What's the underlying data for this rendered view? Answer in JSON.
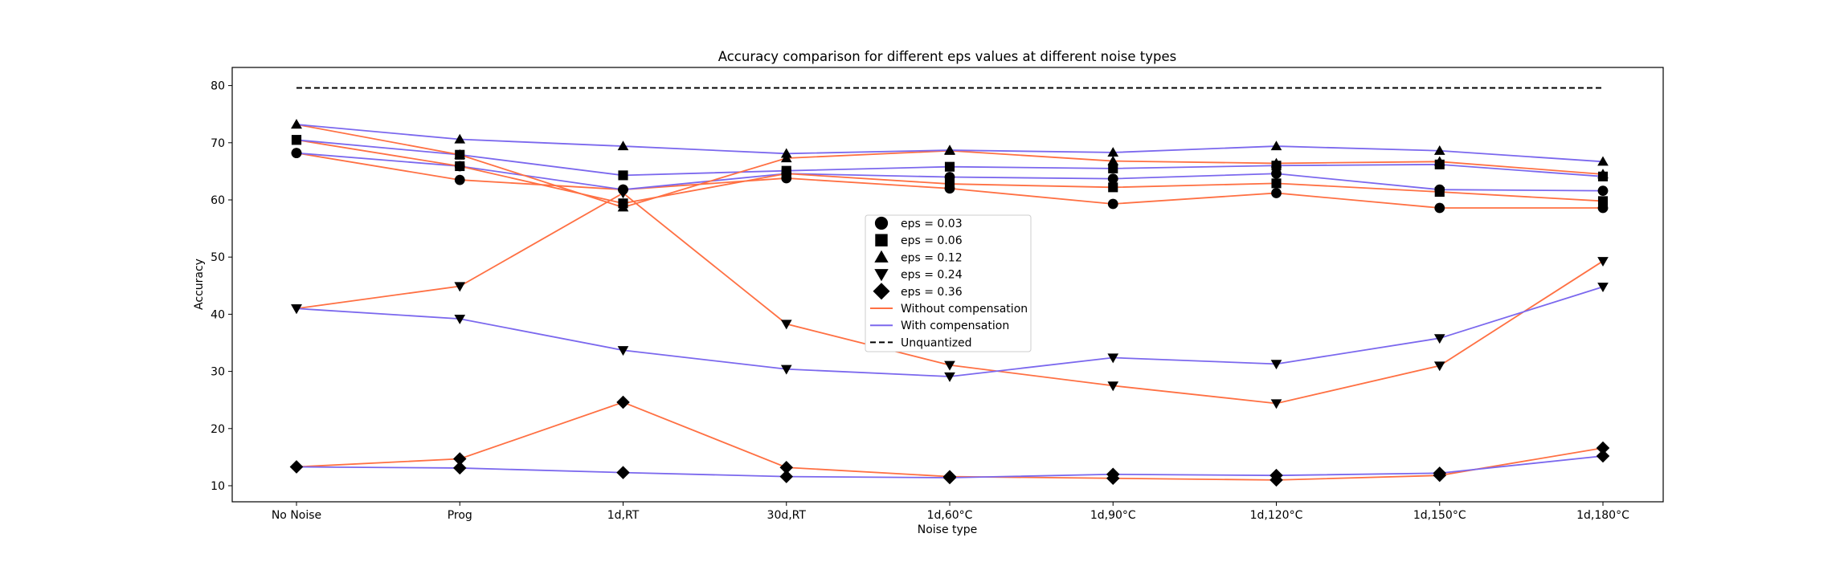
{
  "chart_data": {
    "type": "line",
    "title": "Accuracy comparison for different eps values at different noise types",
    "xlabel": "Noise type",
    "ylabel": "Accuracy",
    "ylim": [
      8,
      83
    ],
    "yticks": [
      10,
      20,
      30,
      40,
      50,
      60,
      70,
      80
    ],
    "categories": [
      "No Noise",
      "Prog",
      "1d,RT",
      "30d,RT",
      "1d,60°C",
      "1d,90°C",
      "1d,120°C",
      "1d,150°C",
      "1d,180°C"
    ],
    "unquantized": 79.6,
    "colors": {
      "without": "#ff7043",
      "with": "#7b68ee",
      "unquantized": "#000000"
    },
    "series": [
      {
        "eps": "0.03",
        "marker": "circle",
        "compensation": "without",
        "values": [
          68.2,
          63.5,
          61.8,
          63.8,
          62.0,
          59.3,
          61.2,
          58.6,
          58.6
        ]
      },
      {
        "eps": "0.03",
        "marker": "circle",
        "compensation": "with",
        "values": [
          68.2,
          65.9,
          61.8,
          64.6,
          64.0,
          63.7,
          64.6,
          61.8,
          61.6
        ]
      },
      {
        "eps": "0.06",
        "marker": "square",
        "compensation": "without",
        "values": [
          70.5,
          65.9,
          59.4,
          64.6,
          62.8,
          62.2,
          62.9,
          61.4,
          59.8
        ]
      },
      {
        "eps": "0.06",
        "marker": "square",
        "compensation": "with",
        "values": [
          70.5,
          67.9,
          64.3,
          65.1,
          65.8,
          65.5,
          66.0,
          66.2,
          64.1
        ]
      },
      {
        "eps": "0.12",
        "marker": "triangle-up",
        "compensation": "without",
        "values": [
          73.2,
          67.9,
          58.7,
          67.3,
          68.6,
          66.8,
          66.4,
          66.7,
          64.5
        ]
      },
      {
        "eps": "0.12",
        "marker": "triangle-up",
        "compensation": "with",
        "values": [
          73.2,
          70.6,
          69.4,
          68.1,
          68.7,
          68.3,
          69.4,
          68.6,
          66.7
        ]
      },
      {
        "eps": "0.24",
        "marker": "triangle-down",
        "compensation": "without",
        "values": [
          41.0,
          44.9,
          61.2,
          38.3,
          31.1,
          27.5,
          24.4,
          31.0,
          49.3
        ]
      },
      {
        "eps": "0.24",
        "marker": "triangle-down",
        "compensation": "with",
        "values": [
          41.0,
          39.2,
          33.7,
          30.4,
          29.1,
          32.4,
          31.3,
          35.8,
          44.8
        ]
      },
      {
        "eps": "0.36",
        "marker": "diamond",
        "compensation": "without",
        "values": [
          13.3,
          14.7,
          24.6,
          13.2,
          11.6,
          11.3,
          11.0,
          11.8,
          16.6
        ]
      },
      {
        "eps": "0.36",
        "marker": "diamond",
        "compensation": "with",
        "values": [
          13.3,
          13.1,
          12.3,
          11.6,
          11.4,
          12.0,
          11.8,
          12.2,
          15.2
        ]
      }
    ],
    "legend": {
      "placement": "center",
      "entries": [
        {
          "label": "eps = 0.03",
          "kind": "marker",
          "marker": "circle"
        },
        {
          "label": "eps = 0.06",
          "kind": "marker",
          "marker": "square"
        },
        {
          "label": "eps = 0.12",
          "kind": "marker",
          "marker": "triangle-up"
        },
        {
          "label": "eps = 0.24",
          "kind": "marker",
          "marker": "triangle-down"
        },
        {
          "label": "eps = 0.36",
          "kind": "marker",
          "marker": "diamond"
        },
        {
          "label": "Without compensation",
          "kind": "line",
          "style": "without"
        },
        {
          "label": "With compensation",
          "kind": "line",
          "style": "with"
        },
        {
          "label": "Unquantized",
          "kind": "dashed",
          "style": "unquantized"
        }
      ]
    }
  }
}
